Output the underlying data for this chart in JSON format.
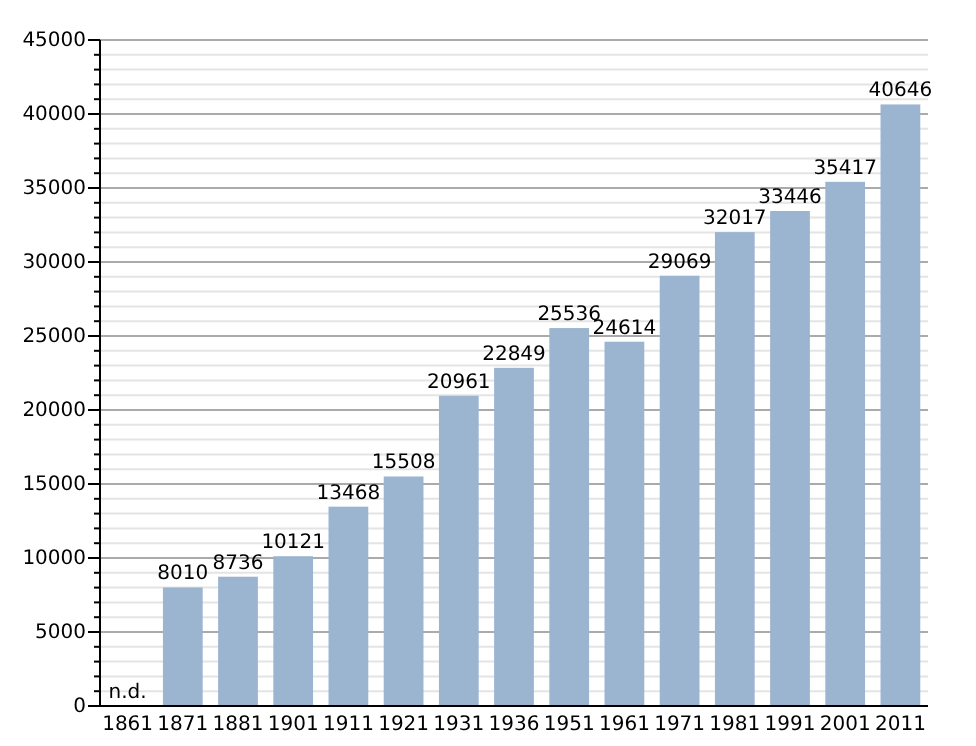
{
  "chart_data": {
    "type": "bar",
    "categories": [
      "1861",
      "1871",
      "1881",
      "1901",
      "1911",
      "1921",
      "1931",
      "1936",
      "1951",
      "1961",
      "1971",
      "1981",
      "1991",
      "2001",
      "2011"
    ],
    "values": [
      null,
      8010,
      8736,
      10121,
      13468,
      15508,
      20961,
      22849,
      25536,
      24614,
      29069,
      32017,
      33446,
      35417,
      40646
    ],
    "value_labels": [
      "n.d.",
      "8010",
      "8736",
      "10121",
      "13468",
      "15508",
      "20961",
      "22849",
      "25536",
      "24614",
      "29069",
      "32017",
      "33446",
      "35417",
      "40646"
    ],
    "color": "#9bb4cf",
    "ylim": [
      0,
      45000
    ],
    "yticks": [
      0,
      {
        "value": 1000,
        "label": null
      },
      {
        "value": 2000,
        "label": null
      },
      {
        "value": 3000,
        "label": null
      },
      {
        "value": 4000,
        "label": null
      },
      5000,
      {
        "value": 6000,
        "label": null
      },
      {
        "value": 7000,
        "label": null
      },
      {
        "value": 8000,
        "label": null
      },
      {
        "value": 9000,
        "label": null
      },
      10000,
      {
        "value": 11000,
        "label": null
      },
      {
        "value": 12000,
        "label": null
      },
      {
        "value": 13000,
        "label": null
      },
      {
        "value": 14000,
        "label": null
      },
      15000,
      {
        "value": 16000,
        "label": null
      },
      {
        "value": 17000,
        "label": null
      },
      {
        "value": 18000,
        "label": null
      },
      {
        "value": 19000,
        "label": null
      },
      20000,
      {
        "value": 21000,
        "label": null
      },
      {
        "value": 22000,
        "label": null
      },
      {
        "value": 23000,
        "label": null
      },
      {
        "value": 24000,
        "label": null
      },
      25000,
      {
        "value": 26000,
        "label": null
      },
      {
        "value": 27000,
        "label": null
      },
      {
        "value": 28000,
        "label": null
      },
      {
        "value": 29000,
        "label": null
      },
      30000,
      {
        "value": 31000,
        "label": null
      },
      {
        "value": 32000,
        "label": null
      },
      {
        "value": 33000,
        "label": null
      },
      {
        "value": 34000,
        "label": null
      },
      35000,
      {
        "value": 36000,
        "label": null
      },
      {
        "value": 37000,
        "label": null
      },
      {
        "value": 38000,
        "label": null
      },
      {
        "value": 39000,
        "label": null
      },
      40000,
      {
        "value": 41000,
        "label": null
      },
      {
        "value": 42000,
        "label": null
      },
      {
        "value": 43000,
        "label": null
      },
      {
        "value": 44000,
        "label": null
      },
      45000
    ],
    "grid": "y"
  }
}
